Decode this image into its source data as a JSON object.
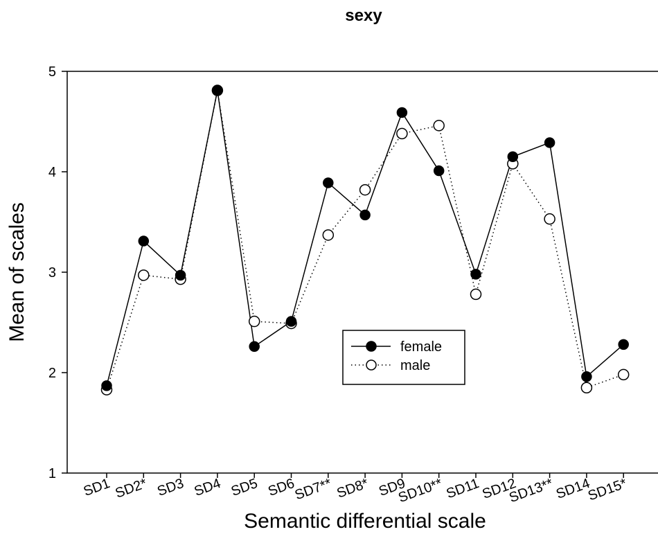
{
  "chart_data": {
    "type": "line",
    "title": "sexy",
    "xlabel": "Semantic differential scale",
    "ylabel": "Mean of scales",
    "ylim": [
      1,
      5
    ],
    "yticks": [
      1,
      2,
      3,
      4,
      5
    ],
    "categories": [
      "SD1",
      "SD2*",
      "SD3",
      "SD4",
      "SD5",
      "SD6",
      "SD7**",
      "SD8*",
      "SD9",
      "SD10**",
      "SD11",
      "SD12",
      "SD13**",
      "SD14",
      "SD15*"
    ],
    "series": [
      {
        "name": "female",
        "marker": "filled-circle",
        "line": "solid",
        "values": [
          1.87,
          3.31,
          2.97,
          4.81,
          2.26,
          2.51,
          3.89,
          3.57,
          4.59,
          4.01,
          2.98,
          4.15,
          4.29,
          1.96,
          2.28
        ]
      },
      {
        "name": "male",
        "marker": "open-circle",
        "line": "dotted",
        "values": [
          1.83,
          2.97,
          2.93,
          4.81,
          2.51,
          2.49,
          3.37,
          3.82,
          4.38,
          4.46,
          2.78,
          4.08,
          3.53,
          1.85,
          1.98
        ]
      }
    ],
    "grid": false,
    "legend_position": "center-right"
  }
}
